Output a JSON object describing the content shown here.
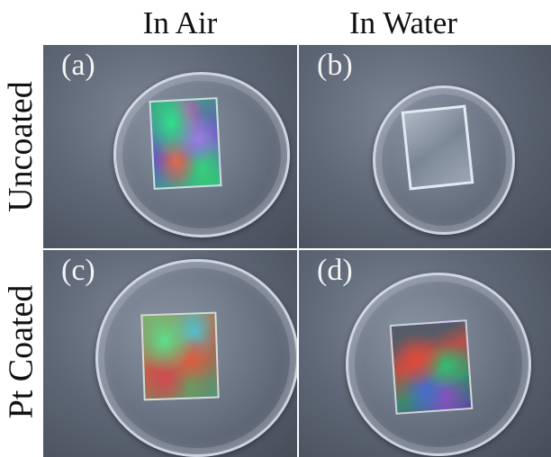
{
  "columns": [
    "In Air",
    "In Water"
  ],
  "rows": [
    "Uncoated",
    "Pt Coated"
  ],
  "panels": {
    "a": "(a)",
    "b": "(b)",
    "c": "(c)",
    "d": "(d)"
  },
  "colors": {
    "background": "#ffffff",
    "panel_surface": "#5f6876",
    "label_text": "#f4f4f4"
  }
}
